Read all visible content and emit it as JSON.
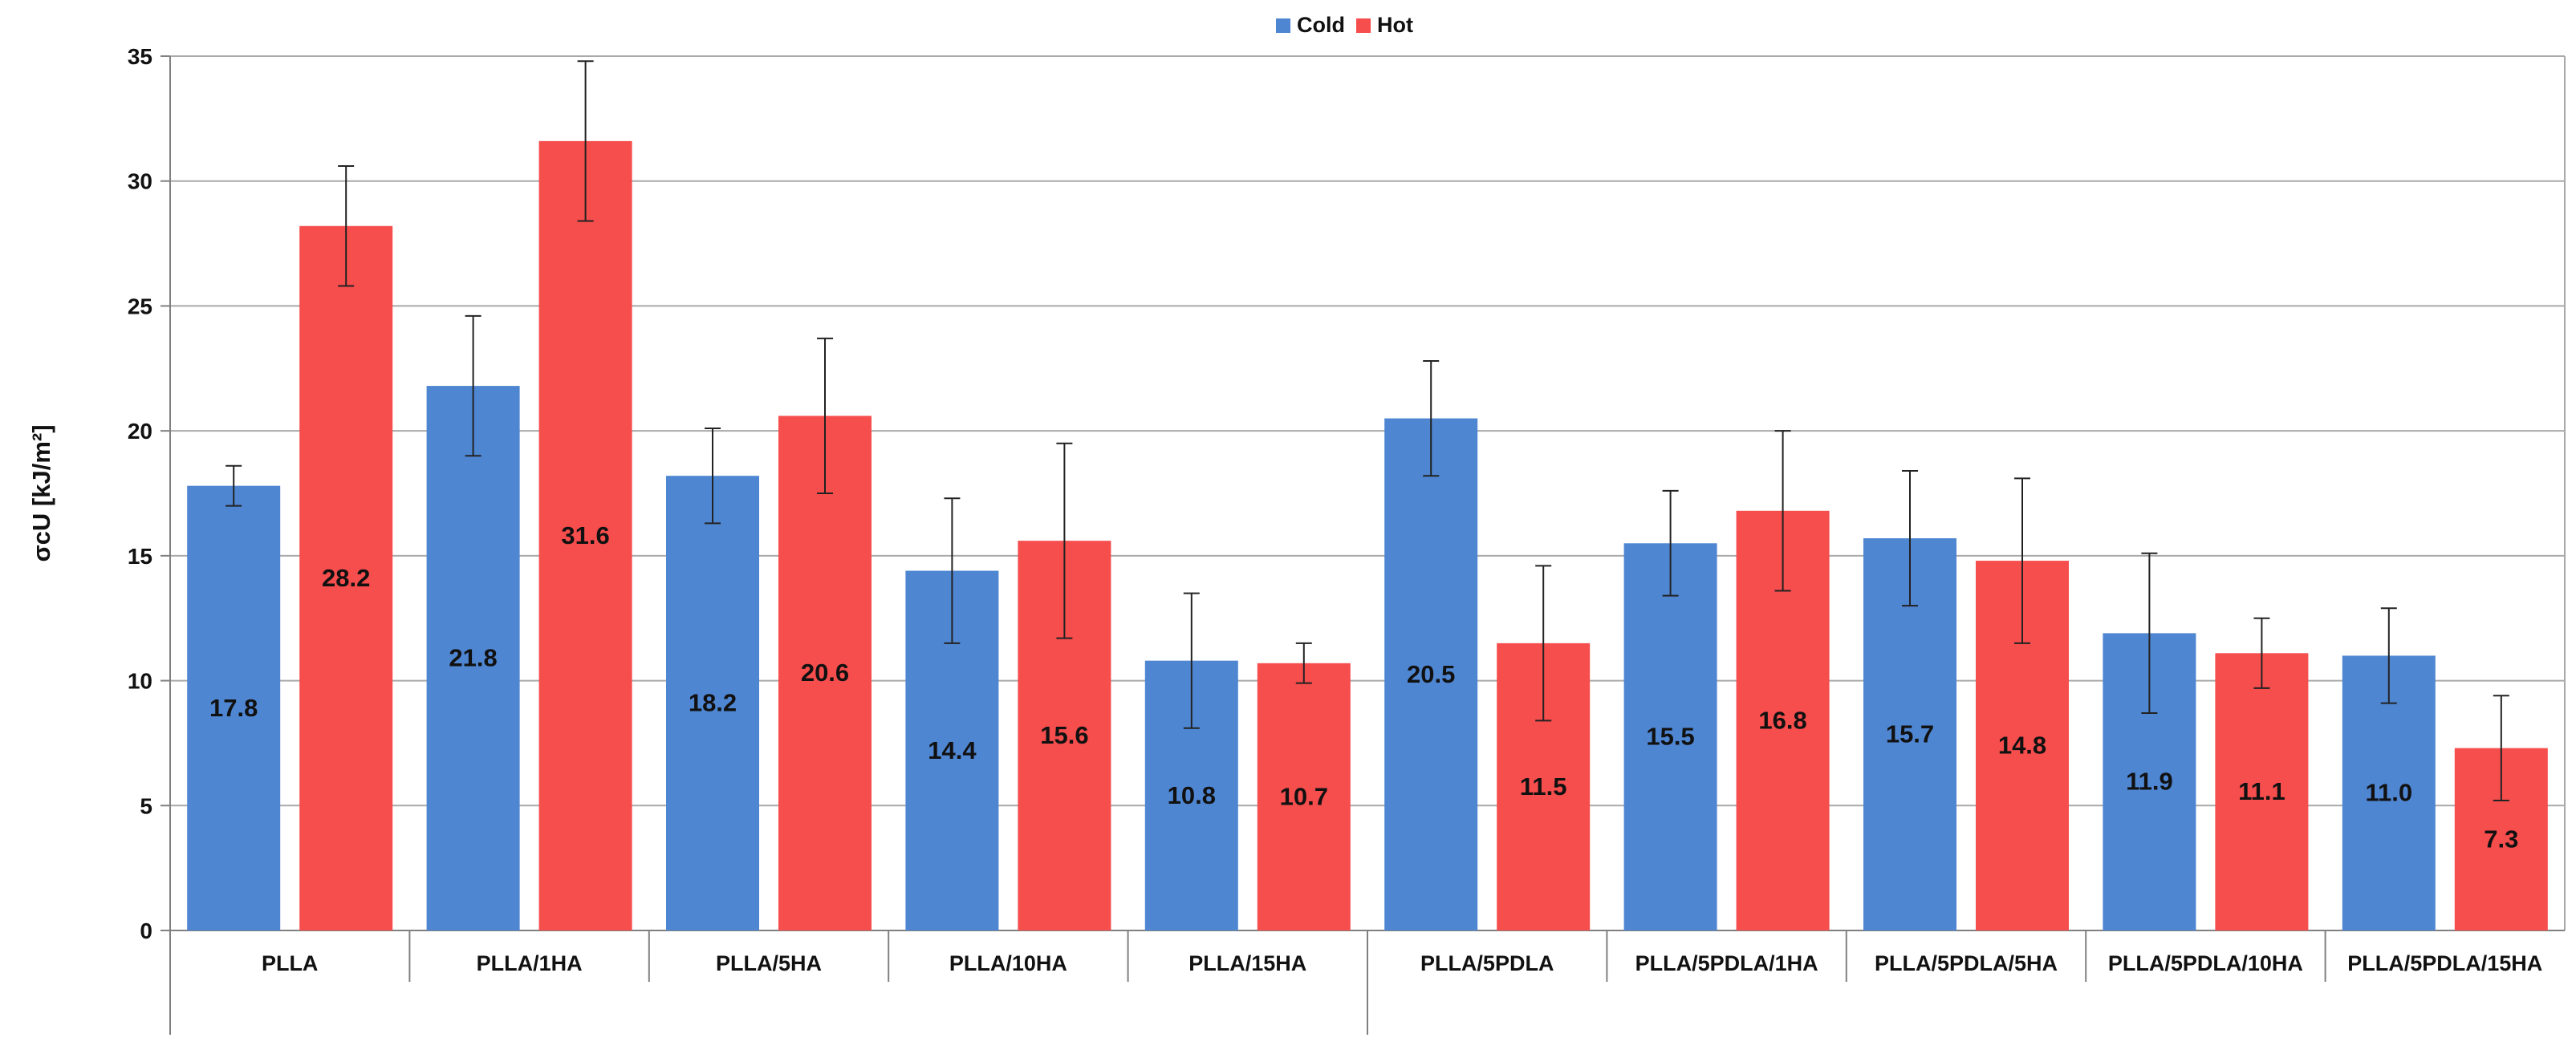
{
  "chart_data": {
    "type": "bar",
    "title": "",
    "xlabel": "",
    "ylabel": "σcU [kJ/m²]",
    "ylim": [
      0,
      35
    ],
    "ytick_step": 5,
    "grid": true,
    "legend_position": "top",
    "categories": [
      "PLLA",
      "PLLA/1HA",
      "PLLA/5HA",
      "PLLA/10HA",
      "PLLA/15HA",
      "PLLA/5PDLA",
      "PLLA/5PDLA/1HA",
      "PLLA/5PDLA/5HA",
      "PLLA/5PDLA/10HA",
      "PLLA/5PDLA/15HA"
    ],
    "series": [
      {
        "name": "Cold",
        "color": "#4f86d2",
        "values": [
          17.8,
          21.8,
          18.2,
          14.4,
          10.8,
          20.5,
          15.5,
          15.7,
          11.9,
          11.0
        ],
        "labels": [
          "17.8",
          "21.8",
          "18.2",
          "14.4",
          "10.8",
          "20.5",
          "15.5",
          "15.7",
          "11.9",
          "11.0"
        ],
        "err_low": [
          17.0,
          19.0,
          16.3,
          11.5,
          8.1,
          18.2,
          13.4,
          13.0,
          8.7,
          9.1
        ],
        "err_high": [
          18.6,
          24.6,
          20.1,
          17.3,
          13.5,
          22.8,
          17.6,
          18.4,
          15.1,
          12.9
        ]
      },
      {
        "name": "Hot",
        "color": "#f64d4d",
        "values": [
          28.2,
          31.6,
          20.6,
          15.6,
          10.7,
          11.5,
          16.8,
          14.8,
          11.1,
          7.3
        ],
        "labels": [
          "28.2",
          "31.6",
          "20.6",
          "15.6",
          "10.7",
          "11.5",
          "16.8",
          "14.8",
          "11.1",
          "7.3"
        ],
        "err_low": [
          25.8,
          28.4,
          17.5,
          11.7,
          9.9,
          8.4,
          13.6,
          11.5,
          9.7,
          5.2
        ],
        "err_high": [
          30.6,
          34.8,
          23.7,
          19.5,
          11.5,
          14.6,
          20.0,
          18.1,
          12.5,
          9.4
        ]
      }
    ]
  }
}
